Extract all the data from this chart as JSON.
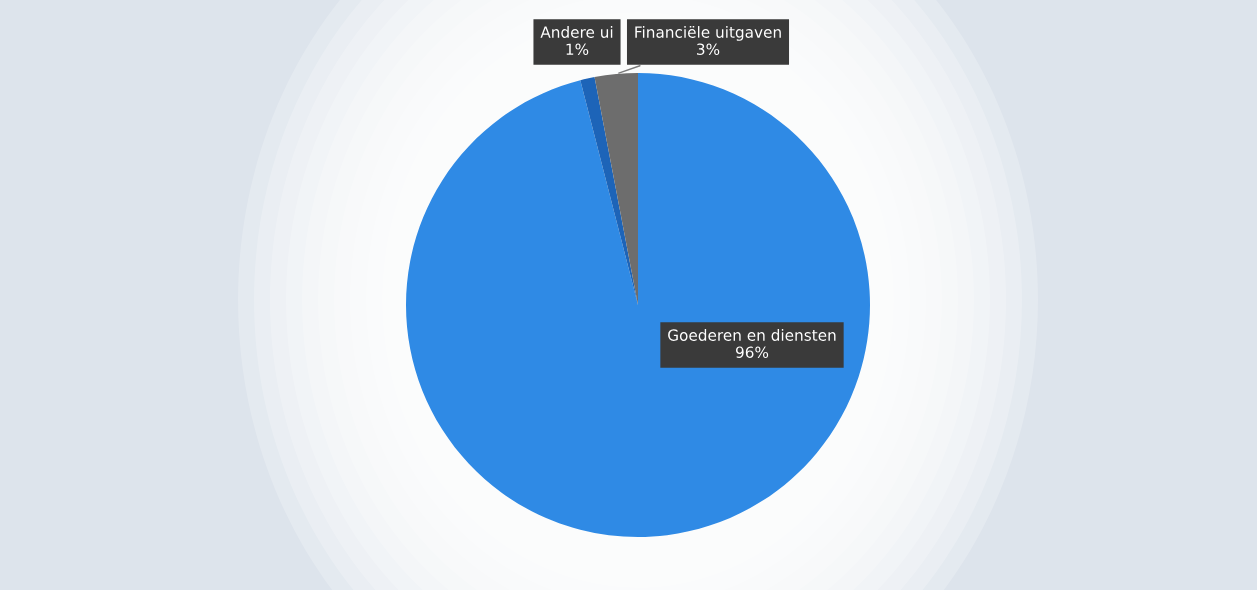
{
  "chart_data": {
    "type": "pie",
    "categories": [
      "Goederen en diensten",
      "Andere ui",
      "Financiële uitgaven"
    ],
    "values": [
      96,
      1,
      3
    ],
    "colors": [
      "#2f8ae5",
      "#1d64b8",
      "#6d6d6d"
    ],
    "value_labels": [
      "96%",
      "1%",
      "3%"
    ]
  }
}
